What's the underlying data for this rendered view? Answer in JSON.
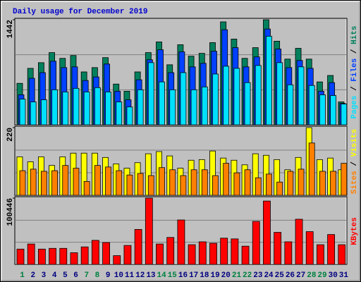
{
  "chart_data": [
    {
      "type": "bar",
      "title": "Daily usage for December 2019",
      "legend_separator": " / ",
      "ylim": [
        0,
        1442
      ],
      "yticks": [
        1442
      ],
      "series": [
        {
          "name": "Hits",
          "color": "#00805c",
          "values": [
            569,
            775,
            853,
            991,
            912,
            951,
            726,
            785,
            922,
            559,
            461,
            726,
            991,
            1138,
            824,
            1099,
            942,
            981,
            1128,
            1413,
            1177,
            912,
            1059,
            1442,
            1148,
            902,
            1050,
            902,
            589,
            677,
            314
          ]
        },
        {
          "name": "Files",
          "color": "#0040ff",
          "values": [
            412,
            638,
            716,
            873,
            785,
            795,
            608,
            657,
            834,
            461,
            343,
            618,
            893,
            1030,
            716,
            1001,
            795,
            844,
            1010,
            1305,
            1059,
            795,
            932,
            1315,
            1040,
            785,
            883,
            775,
            461,
            579,
            294
          ]
        },
        {
          "name": "Pages",
          "color": "#00e0ff",
          "values": [
            353,
            314,
            343,
            481,
            451,
            500,
            451,
            510,
            451,
            314,
            245,
            481,
            853,
            589,
            481,
            716,
            481,
            520,
            697,
            804,
            775,
            579,
            814,
            1216,
            853,
            549,
            795,
            540,
            412,
            402,
            285
          ]
        }
      ]
    },
    {
      "type": "bar",
      "legend_separator": " / ",
      "ylim": [
        0,
        220
      ],
      "yticks": [
        220
      ],
      "series": [
        {
          "name": "Visits",
          "color": "#ffff00",
          "values": [
            125,
            109,
            125,
            97,
            125,
            137,
            137,
            137,
            123,
            102,
            88,
            106,
            135,
            142,
            128,
            88,
            114,
            116,
            144,
            121,
            114,
            99,
            135,
            130,
            116,
            83,
            123,
            220,
            116,
            121,
            83
          ]
        },
        {
          "name": "Sites",
          "color": "#ff8000",
          "values": [
            80,
            85,
            78,
            80,
            97,
            88,
            45,
            97,
            92,
            80,
            66,
            71,
            64,
            90,
            83,
            64,
            83,
            83,
            64,
            104,
            73,
            83,
            57,
            69,
            43,
            78,
            85,
            170,
            78,
            78,
            104
          ]
        }
      ]
    },
    {
      "type": "bar",
      "ylim": [
        0,
        100446
      ],
      "yticks": [
        100446
      ],
      "categories": [
        "1",
        "2",
        "3",
        "4",
        "5",
        "6",
        "7",
        "8",
        "9",
        "10",
        "11",
        "12",
        "13",
        "14",
        "15",
        "16",
        "17",
        "18",
        "19",
        "20",
        "21",
        "22",
        "23",
        "24",
        "25",
        "26",
        "27",
        "28",
        "29",
        "30",
        "31"
      ],
      "label_color": "#000080",
      "highlight_color": "#008040",
      "highlight": [
        0,
        6,
        7,
        13,
        14,
        20,
        21,
        27,
        28
      ],
      "series": [
        {
          "name": "KBytes",
          "color": "#ff0000",
          "values": [
            23182,
            30907,
            23182,
            24286,
            24286,
            17660,
            26493,
            36424,
            33115,
            13245,
            28700,
            52981,
            100446,
            30907,
            40840,
            67330,
            29800,
            34220,
            32010,
            39740,
            38630,
            27600,
            65130,
            96030,
            48570,
            34220,
            68440,
            49670,
            29800,
            45260,
            29800
          ]
        }
      ]
    }
  ]
}
